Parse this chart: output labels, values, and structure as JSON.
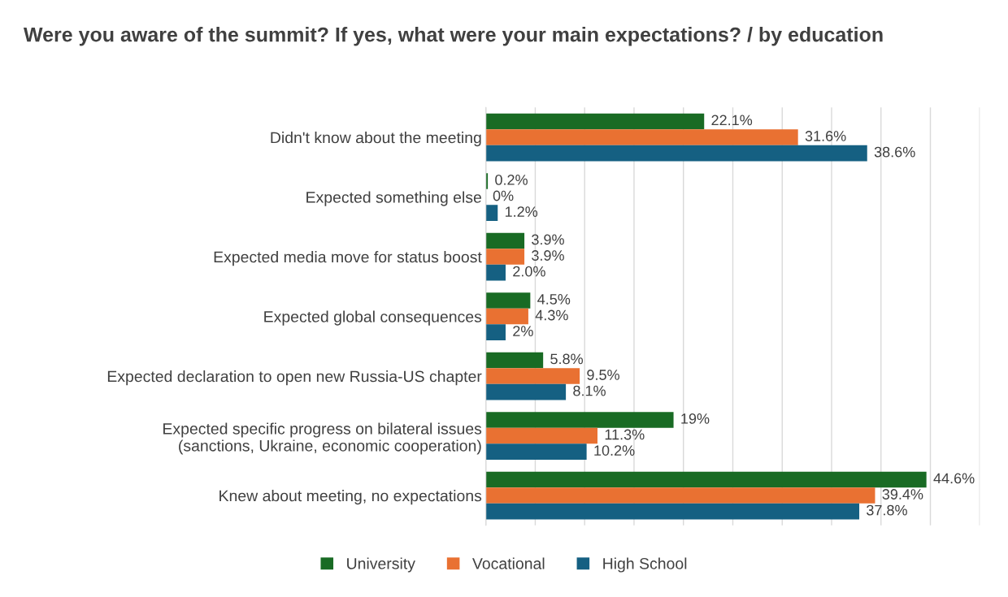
{
  "chart_data": {
    "type": "bar",
    "orientation": "horizontal",
    "title": "Were you aware of the summit? If yes, what were your main expectations? / by education",
    "categories": [
      "Didn't know about the meeting",
      "Expected something else",
      "Expected media move for status boost",
      "Expected global consequences",
      "Expected declaration to open new Russia-US chapter",
      "Expected specific progress on bilateral issues\n(sanctions, Ukraine, economic cooperation)",
      "Knew about meeting, no expectations"
    ],
    "series": [
      {
        "name": "University",
        "color": "#196b24",
        "values": [
          22.1,
          0.2,
          3.9,
          4.5,
          5.8,
          19,
          44.6
        ],
        "value_labels": [
          "22.1%",
          "0.2%",
          "3.9%",
          "4.5%",
          "5.8%",
          "19%",
          "44.6%"
        ]
      },
      {
        "name": "Vocational",
        "color": "#e97132",
        "values": [
          31.6,
          0,
          3.9,
          4.3,
          9.5,
          11.3,
          39.4
        ],
        "value_labels": [
          "31.6%",
          "0%",
          "3.9%",
          "4.3%",
          "9.5%",
          "11.3%",
          "39.4%"
        ]
      },
      {
        "name": "High School",
        "color": "#156082",
        "values": [
          38.6,
          1.2,
          2.0,
          2,
          8.1,
          10.2,
          37.8
        ],
        "value_labels": [
          "38.6%",
          "1.2%",
          "2.0%",
          "2%",
          "8.1%",
          "10.2%",
          "37.8%"
        ]
      }
    ],
    "xlim": [
      0,
      50
    ],
    "xticks": [
      {
        "value": 0,
        "label": null
      },
      {
        "value": 5,
        "label": null
      },
      {
        "value": 10,
        "label": null
      },
      {
        "value": 15,
        "label": null
      },
      {
        "value": 20,
        "label": null
      },
      {
        "value": 25,
        "label": null
      },
      {
        "value": 30,
        "label": null
      },
      {
        "value": 35,
        "label": null
      },
      {
        "value": 40,
        "label": null
      },
      {
        "value": 45,
        "label": null
      },
      {
        "value": 50,
        "label": null
      }
    ],
    "tick_labels": "y",
    "grid": "x",
    "legend": "bottom"
  }
}
